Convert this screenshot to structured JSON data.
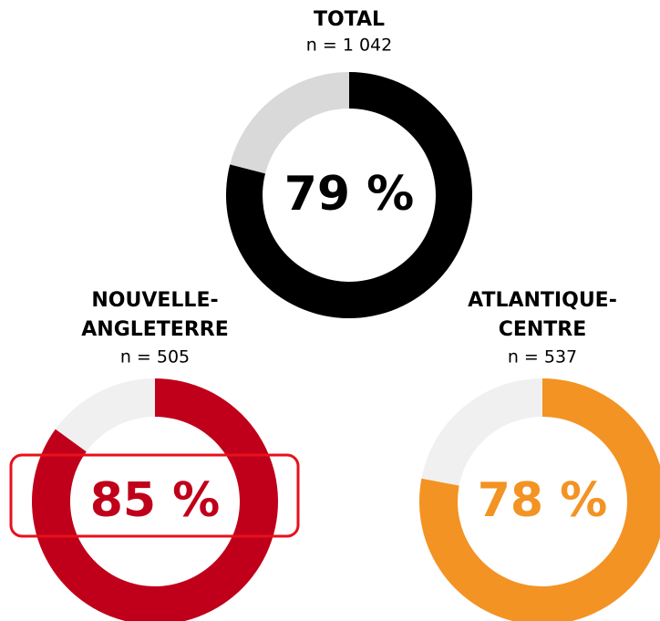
{
  "chart_data": [
    {
      "type": "donut",
      "title": [
        "TOTAL"
      ],
      "subtitle": "n = 1 042",
      "values": [
        79
      ],
      "value_labels": [
        "79 %"
      ],
      "color": "#000000",
      "track_color": "#d9d9d9"
    },
    {
      "type": "donut",
      "title": [
        "NOUVELLE-",
        "ANGLETERRE"
      ],
      "subtitle": "n = 505",
      "values": [
        85
      ],
      "value_labels": [
        "85 %"
      ],
      "color": "#c0001a",
      "track_color": "#f0f0f0"
    },
    {
      "type": "donut",
      "title": [
        "ATLANTIQUE-",
        "CENTRE"
      ],
      "subtitle": "n = 537",
      "values": [
        78
      ],
      "value_labels": [
        "78 %"
      ],
      "color": "#f39323",
      "track_color": "#f0f0f0"
    }
  ]
}
